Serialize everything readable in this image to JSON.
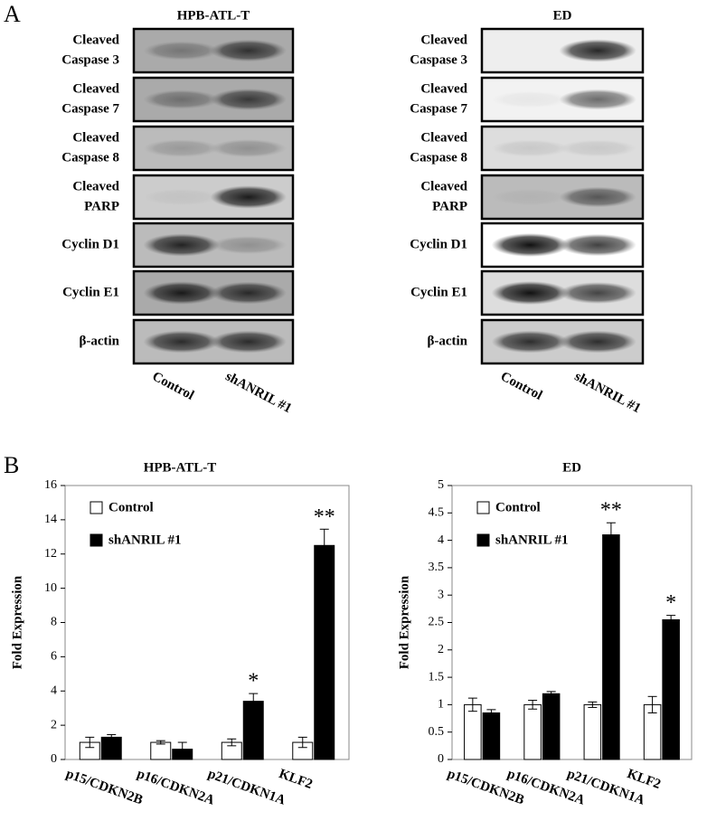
{
  "panel_a": {
    "label": "A",
    "blots": [
      {
        "title": "HPB-ATL-T",
        "rows": [
          [
            "Cleaved",
            "Caspase  3"
          ],
          [
            "Cleaved",
            "Caspase  7"
          ],
          [
            "Cleaved",
            "Caspase  8"
          ],
          [
            "Cleaved",
            "PARP"
          ],
          [
            "Cyclin D1"
          ],
          [
            "Cyclin E1"
          ],
          [
            "β-actin"
          ]
        ],
        "lanes": [
          "Control",
          "shANRIL #1"
        ]
      },
      {
        "title": "ED",
        "rows": [
          [
            "Cleaved",
            "Caspase  3"
          ],
          [
            "Cleaved",
            "Caspase  7"
          ],
          [
            "Cleaved",
            "Caspase  8"
          ],
          [
            "Cleaved",
            "PARP"
          ],
          [
            "Cyclin D1"
          ],
          [
            "Cyclin E1"
          ],
          [
            "β-actin"
          ]
        ],
        "lanes": [
          "Control",
          "shANRIL #1"
        ]
      }
    ]
  },
  "panel_b": {
    "label": "B"
  },
  "chart_data": [
    {
      "type": "bar",
      "title": "HPB-ATL-T",
      "y_label": "Fold Expression",
      "categories": [
        "p15/CDKN2B",
        "p16/CDKN2A",
        "p21/CDKN1A",
        "KLF2"
      ],
      "series": [
        {
          "name": "Control",
          "color": "#ffffff",
          "values": [
            1,
            1,
            1,
            1
          ],
          "errors": [
            0.3,
            0.1,
            0.2,
            0.3
          ],
          "labels": [
            null,
            null,
            null,
            null
          ]
        },
        {
          "name": "shANRIL #1",
          "color": "#000000",
          "values": [
            1.3,
            0.6,
            3.4,
            12.5
          ],
          "errors": [
            0.15,
            0.4,
            0.45,
            0.95
          ],
          "labels": [
            null,
            null,
            "*",
            "**"
          ]
        }
      ],
      "ylim": [
        0,
        16
      ],
      "yticks": [
        0,
        2,
        4,
        6,
        8,
        10,
        12,
        14,
        16
      ]
    },
    {
      "type": "bar",
      "title": "ED",
      "y_label": "Fold Expression",
      "categories": [
        "p15/CDKN2B",
        "p16/CDKN2A",
        "p21/CDKN1A",
        "KLF2"
      ],
      "series": [
        {
          "name": "Control",
          "color": "#ffffff",
          "values": [
            1,
            1,
            1,
            1
          ],
          "errors": [
            0.12,
            0.08,
            0.05,
            0.15
          ],
          "labels": [
            null,
            null,
            null,
            null
          ]
        },
        {
          "name": "shANRIL #1",
          "color": "#000000",
          "values": [
            0.85,
            1.2,
            4.1,
            2.55
          ],
          "errors": [
            0.06,
            0.04,
            0.22,
            0.08
          ],
          "labels": [
            null,
            null,
            "**",
            "*"
          ]
        }
      ],
      "ylim": [
        0,
        5
      ],
      "yticks": [
        0,
        0.5,
        1,
        1.5,
        2,
        2.5,
        3,
        3.5,
        4,
        4.5,
        5
      ]
    }
  ]
}
